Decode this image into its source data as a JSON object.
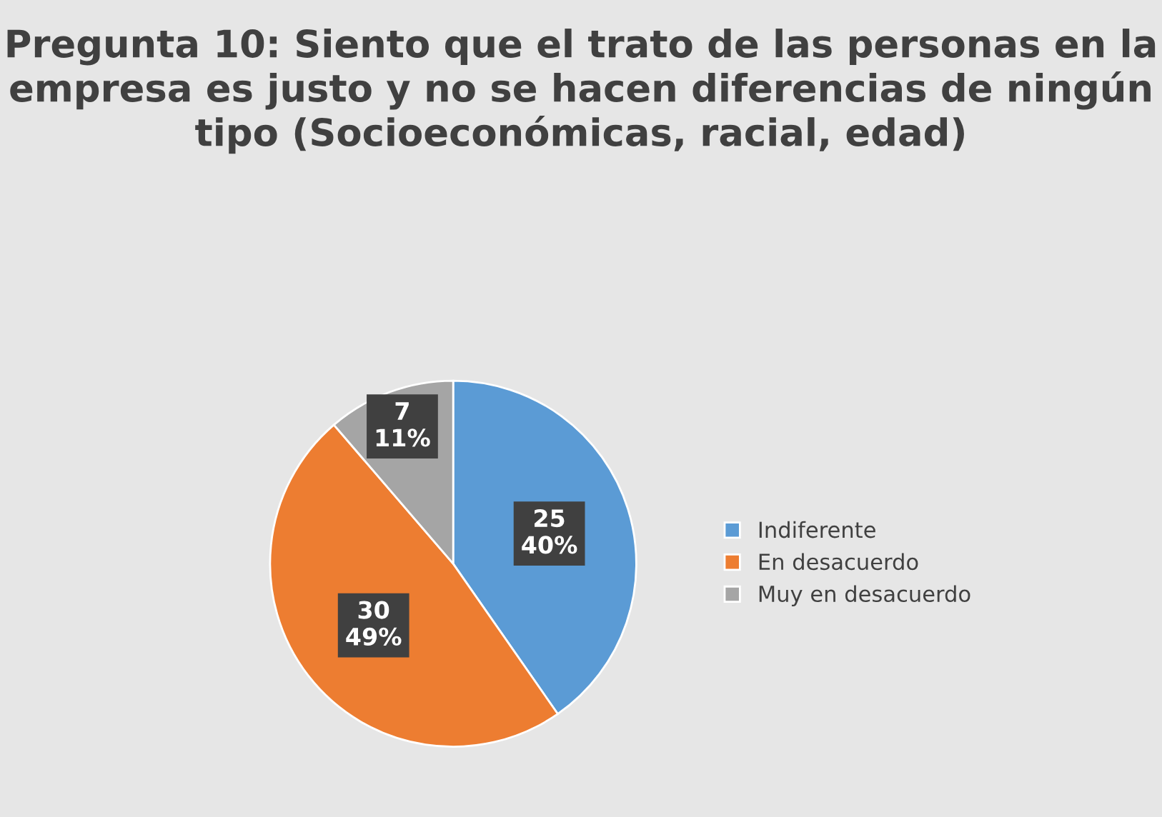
{
  "chart_data": {
    "type": "pie",
    "title": "Pregunta 10: Siento que el trato de las personas en la empresa es justo y no se hacen diferencias de ningún tipo (Socioeconómicas, racial, edad)",
    "categories": [
      "Indiferente",
      "En desacuerdo",
      "Muy en desacuerdo"
    ],
    "values": [
      25,
      30,
      7
    ],
    "value_labels": [
      "25\n40%",
      "30\n49%",
      "7\n11%"
    ],
    "colors": [
      "#5b9bd5",
      "#ed7d31",
      "#a5a5a5"
    ],
    "legend": "right"
  }
}
